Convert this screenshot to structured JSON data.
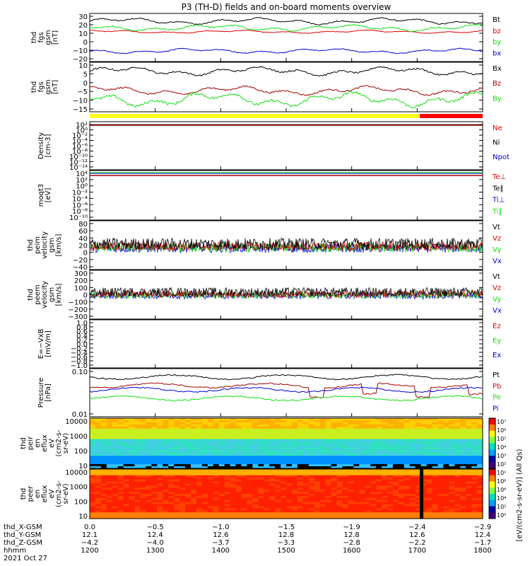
{
  "title": "P3 (TH-D) fields and on-board moments overview",
  "colors": {
    "black": "#000000",
    "red": "#e00000",
    "dkred": "#a00000",
    "green": "#10e010",
    "blue": "#0000d0",
    "yellow": "#ffff20",
    "bar_red": "#ff0000"
  },
  "chart_data": [
    {
      "type": "line",
      "panel": "fgs_gsm",
      "ylabel": [
        "thd",
        "fgs",
        "gsm",
        "[nT]"
      ],
      "yticks": [
        "30",
        "20",
        "10",
        "0",
        "−10",
        "−20"
      ],
      "ylim": [
        -20,
        30
      ],
      "series": [
        {
          "name": "Bt",
          "color": "black",
          "level": 22,
          "amp": 2.0
        },
        {
          "name": "bz",
          "color": "red",
          "level": 11,
          "amp": 1.0
        },
        {
          "name": "by",
          "color": "green",
          "level": 15,
          "amp": 2.0
        },
        {
          "name": "bx",
          "color": "blue",
          "level": -9,
          "amp": 1.5
        }
      ]
    },
    {
      "type": "line",
      "panel": "fgs_gsm_dc",
      "ylabel": [
        "thd",
        "fgs",
        "gsm",
        "[nT]"
      ],
      "yticks": [
        "10",
        "5",
        "0",
        "−5",
        "−10",
        "−15"
      ],
      "ylim": [
        -17,
        11
      ],
      "series": [
        {
          "name": "Bx",
          "color": "black",
          "level": 6,
          "amp": 1.5
        },
        {
          "name": "Bz",
          "color": "dkred",
          "level": -5,
          "amp": 1.5
        },
        {
          "name": "By",
          "color": "green",
          "level": -10,
          "amp": 2.5
        }
      ]
    },
    {
      "type": "line",
      "panel": "density",
      "ylabel": [
        "Density",
        "[cm-3]"
      ],
      "yticks": [
        "10²",
        "10⁰",
        "10⁻²",
        "10⁻⁴",
        "10⁻⁶",
        "10⁻⁸",
        "10⁻¹⁰",
        "10⁻¹²",
        "10⁻¹⁴"
      ],
      "log": true,
      "series": [
        {
          "name": "Ne",
          "color": "red"
        },
        {
          "name": "Ni",
          "color": "black"
        },
        {
          "name": "Npot",
          "color": "blue"
        }
      ]
    },
    {
      "type": "line",
      "panel": "temperature",
      "ylabel": [
        "moqt3",
        "[eV]"
      ],
      "yticks": [
        "10⁴",
        "10²",
        "10⁰",
        "10⁻²",
        "10⁻⁴",
        "10⁻⁶",
        "10⁻⁸",
        "10⁻¹⁰"
      ],
      "log": true,
      "series": [
        {
          "name": "Te⊥",
          "color": "red"
        },
        {
          "name": "Te∥",
          "color": "black"
        },
        {
          "name": "Ti⊥",
          "color": "blue"
        },
        {
          "name": "Ti∥",
          "color": "green"
        }
      ]
    },
    {
      "type": "line",
      "panel": "peim_velocity",
      "ylabel": [
        "thd",
        "peim",
        "velocity",
        "gsm",
        "[km/s]"
      ],
      "yticks": [
        "80",
        "60",
        "40",
        "20",
        "0",
        "−20",
        "−40"
      ],
      "ylim": [
        -40,
        80
      ],
      "series": [
        {
          "name": "Vt",
          "color": "black"
        },
        {
          "name": "Vz",
          "color": "red"
        },
        {
          "name": "Vy",
          "color": "green"
        },
        {
          "name": "Vx",
          "color": "blue"
        }
      ]
    },
    {
      "type": "line",
      "panel": "peem_velocity",
      "ylabel": [
        "thd",
        "peem",
        "velocity",
        "gsm",
        "[km/s]"
      ],
      "yticks": [
        "300",
        "200",
        "100",
        "0",
        "−100",
        "−200",
        "−300"
      ],
      "ylim": [
        -300,
        300
      ],
      "series": [
        {
          "name": "Vt",
          "color": "black"
        },
        {
          "name": "Vz",
          "color": "red"
        },
        {
          "name": "Vy",
          "color": "green"
        },
        {
          "name": "Vx",
          "color": "blue"
        }
      ]
    },
    {
      "type": "line",
      "panel": "efield",
      "ylabel": [
        "E=−VxB",
        "[mV/m]"
      ],
      "yticks": [
        "1.0",
        "0.8",
        "0.6",
        "0.4",
        "0.2",
        "0.0",
        "−0.2",
        "−0.4",
        "−0.6",
        "−0.8",
        "−1.0"
      ],
      "ylim": [
        -1,
        1
      ],
      "series": [
        {
          "name": "Ez",
          "color": "red"
        },
        {
          "name": "Ey",
          "color": "green"
        },
        {
          "name": "Ex",
          "color": "blue"
        }
      ]
    },
    {
      "type": "line",
      "panel": "pressure",
      "ylabel": [
        "Pressure",
        "[nPa]"
      ],
      "yticks": [
        "0.10",
        "0.01"
      ],
      "log": true,
      "series": [
        {
          "name": "Pt",
          "color": "black"
        },
        {
          "name": "Pb",
          "color": "red"
        },
        {
          "name": "Pe",
          "color": "green"
        },
        {
          "name": "Pi",
          "color": "blue"
        }
      ]
    },
    {
      "type": "heatmap",
      "panel": "peir_en_eflux",
      "ylabel": [
        "thd",
        "peir",
        "en",
        "eflux",
        "eV",
        "(cm2-s-",
        "sr-eV)"
      ],
      "yticks": [
        "10000",
        "1000",
        "100",
        "10"
      ]
    },
    {
      "type": "heatmap",
      "panel": "peer_en_eflux",
      "ylabel": [
        "thd",
        "peer",
        "en",
        "eflux",
        "eV",
        "(cm2-s-",
        "sr-eV)"
      ],
      "yticks": [
        "10000",
        "1000",
        "100",
        "10"
      ]
    }
  ],
  "colorbar": {
    "ticks": [
      "10⁷",
      "10⁶",
      "10⁵",
      "10⁴",
      "10³",
      "10²",
      "10¹",
      "10⁸",
      "10⁶",
      "10⁴",
      "10²",
      "10⁰"
    ],
    "label": "[eV/(cm2-s-sr-eV)] (All Qs)"
  },
  "x_axis": {
    "rows": [
      {
        "label": "thd_X-GSM",
        "values": [
          "0.0",
          "−0.5",
          "−1.0",
          "−1.5",
          "−1.9",
          "−2.4",
          "−2.9"
        ]
      },
      {
        "label": "thd_Y-GSM",
        "values": [
          "12.1",
          "12.4",
          "12.6",
          "12.8",
          "12.8",
          "12.6",
          "12.4"
        ]
      },
      {
        "label": "thd_Z-GSM",
        "values": [
          "−4.2",
          "−4.0",
          "−3.7",
          "−3.3",
          "−2.8",
          "−2.2",
          "−1.7"
        ]
      },
      {
        "label": "hhmm",
        "values": [
          "1200",
          "1300",
          "1400",
          "1500",
          "1600",
          "1700",
          "1800"
        ]
      }
    ],
    "date": "2021 Oct 27"
  }
}
